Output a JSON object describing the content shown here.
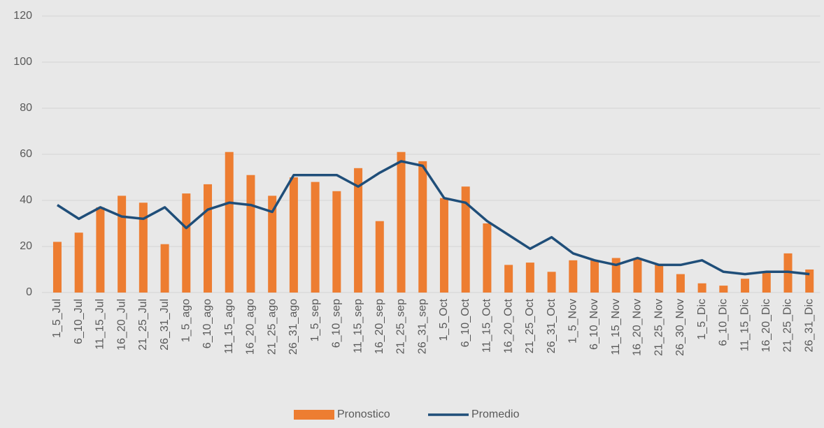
{
  "chart_data": {
    "type": "bar_line",
    "categories": [
      "1_5_Jul",
      "6_10_Jul",
      "11_15_Jul",
      "16_20_Jul",
      "21_25_Jul",
      "26_31_Jul",
      "1_5_ago",
      "6_10_ago",
      "11_15_ago",
      "16_20_ago",
      "21_25_ago",
      "26_31_ago",
      "1_5_sep",
      "6_10_sep",
      "11_15_sep",
      "16_20_sep",
      "21_25_sep",
      "26_31_sep",
      "1_5_Oct",
      "6_10_Oct",
      "11_15_Oct",
      "16_20_Oct",
      "21_25_Oct",
      "26_31_Oct",
      "1_5_Nov",
      "6_10_Nov",
      "11_15_Nov",
      "16_20_Nov",
      "21_25_Nov",
      "26_30_Nov",
      "1_5_Dic",
      "6_10_Dic",
      "11_15_Dic",
      "16_20_Dic",
      "21_25_Dic",
      "26_31_Dic"
    ],
    "series": [
      {
        "name": "Pronostico",
        "kind": "bar",
        "color": "#ed7d31",
        "values": [
          22,
          26,
          37,
          42,
          39,
          21,
          43,
          47,
          61,
          51,
          42,
          50,
          48,
          44,
          54,
          31,
          61,
          57,
          41,
          46,
          30,
          12,
          13,
          9,
          14,
          14,
          15,
          15,
          12,
          8,
          4,
          3,
          6,
          9,
          17,
          10
        ]
      },
      {
        "name": "Promedio",
        "kind": "line",
        "color": "#1f4e79",
        "values": [
          38,
          32,
          37,
          33,
          32,
          37,
          28,
          36,
          39,
          38,
          35,
          51,
          51,
          51,
          46,
          52,
          57,
          55,
          41,
          39,
          31,
          25,
          19,
          24,
          17,
          14,
          12,
          15,
          12,
          12,
          14,
          9,
          8,
          9,
          9,
          8
        ]
      }
    ],
    "ylim": [
      0,
      120
    ],
    "yticks": [
      0,
      20,
      40,
      60,
      80,
      100,
      120
    ],
    "grid": true,
    "legend": "bottom"
  }
}
